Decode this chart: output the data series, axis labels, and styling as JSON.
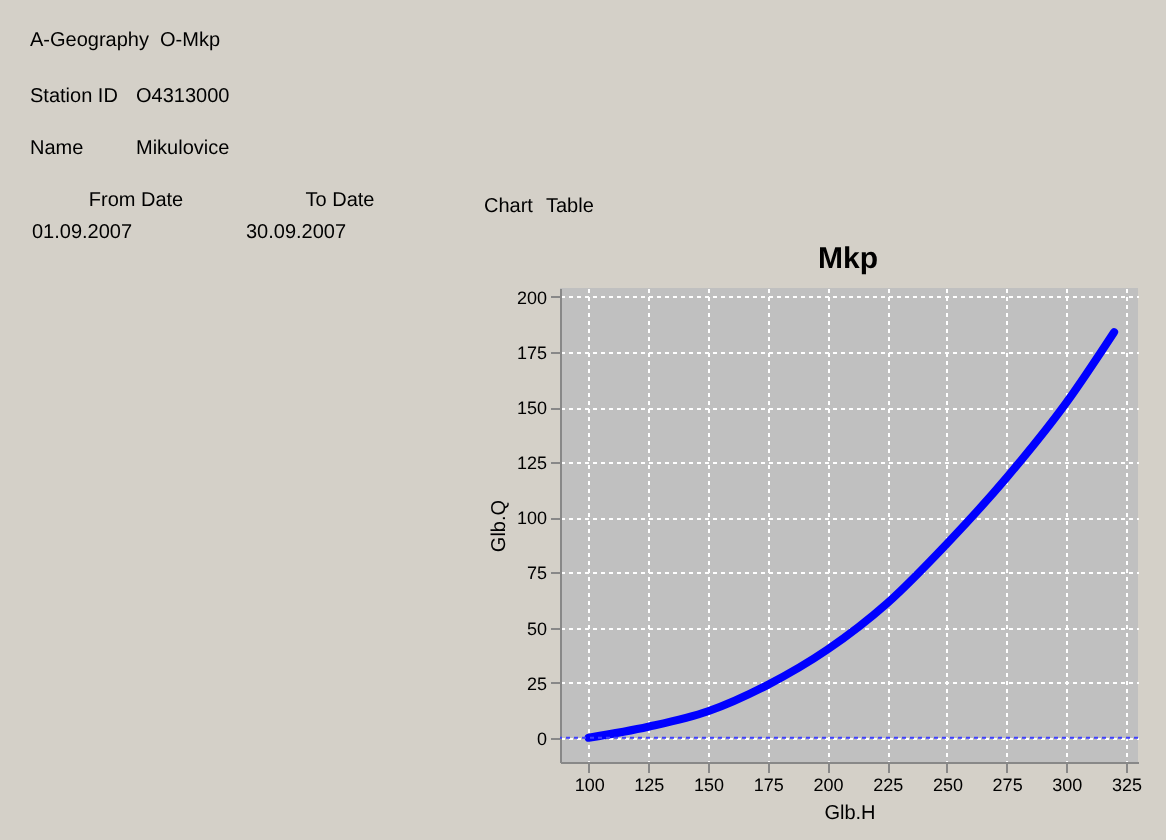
{
  "chart_data": {
    "type": "line",
    "title": "Mkp",
    "xlabel": "Glb.H",
    "ylabel": "Glb.Q",
    "x": [
      100,
      125,
      150,
      175,
      200,
      225,
      250,
      275,
      300,
      320
    ],
    "series": [
      {
        "color": "#0000ff",
        "values": [
          0,
          5,
          12,
          24,
          40,
          61,
          88,
          118,
          152,
          184
        ]
      }
    ],
    "xlim": [
      88,
      330
    ],
    "xticks": [
      100,
      125,
      150,
      175,
      200,
      225,
      250,
      275,
      300,
      325
    ],
    "ylim": [
      -11,
      204
    ],
    "yticks": [
      0,
      25,
      50,
      75,
      100,
      125,
      150,
      175,
      200
    ],
    "grid": true,
    "marker": "none",
    "line_style": "solid",
    "ref_lines": [
      {
        "axis": "y",
        "value": 0,
        "label": null,
        "color": "#4040ff",
        "line_style": "dotted"
      }
    ],
    "annotations": [
      "A-Geography",
      "O-Mkp",
      "Station ID",
      "O4313000",
      "Name",
      "Mikulovice",
      "From Date",
      "To Date",
      "01.09.2007",
      "30.09.2007",
      "Chart",
      "Table"
    ]
  }
}
